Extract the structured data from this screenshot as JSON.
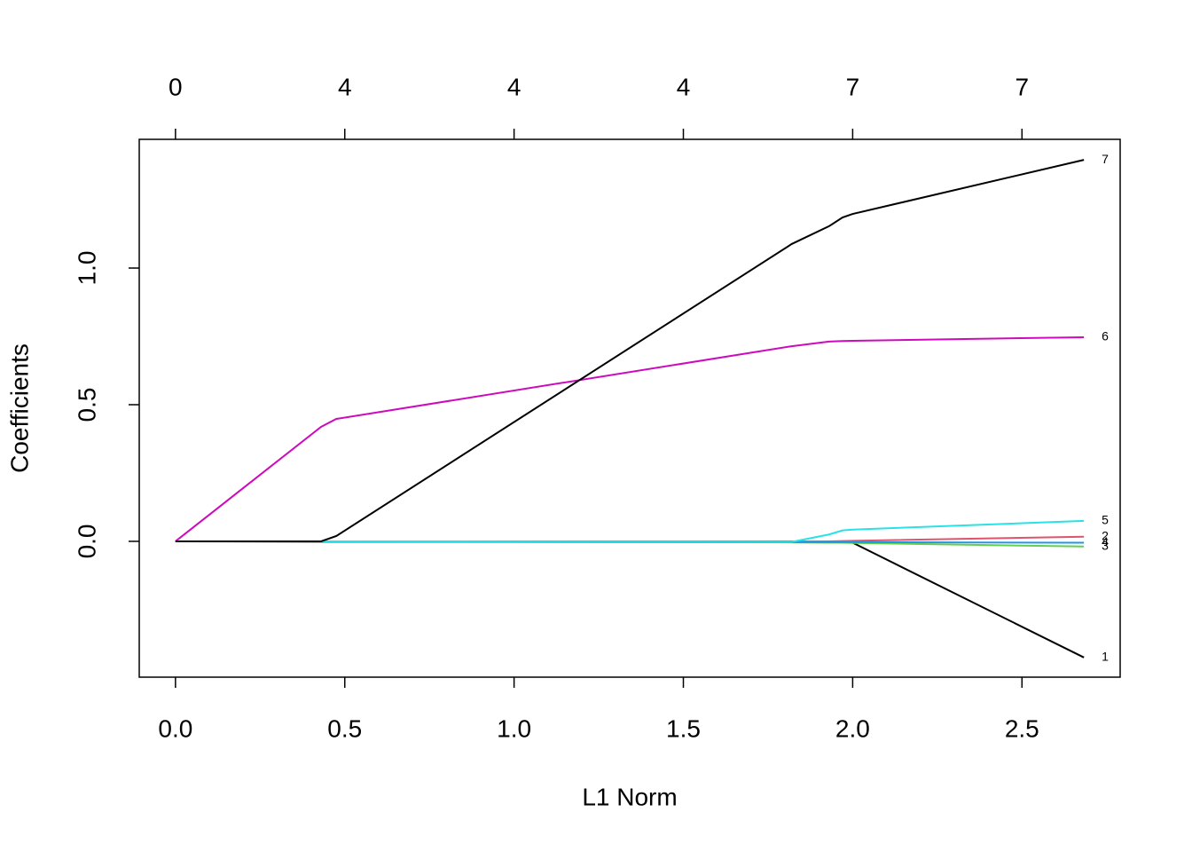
{
  "chart_data": {
    "type": "line",
    "xlabel": "L1 Norm",
    "ylabel": "Coefficients",
    "x": [
      0,
      0.43,
      0.475,
      1.82,
      1.93,
      1.97,
      2.0,
      2.683
    ],
    "series": [
      {
        "name": "1",
        "color": "#000000",
        "values": [
          0,
          0,
          0,
          -0.001,
          -0.002,
          -0.002,
          -0.005,
          -0.425
        ]
      },
      {
        "name": "2",
        "color": "#DF536B",
        "values": [
          0,
          0,
          0,
          -0.001,
          0,
          0.001,
          0.002,
          0.017
        ]
      },
      {
        "name": "3",
        "color": "#61D04F",
        "values": [
          0,
          0,
          0,
          -0.004,
          -0.005,
          -0.005,
          -0.006,
          -0.019
        ]
      },
      {
        "name": "4",
        "color": "#2297E6",
        "values": [
          0,
          -0.002,
          -0.002,
          -0.003,
          -0.003,
          -0.003,
          -0.003,
          -0.005
        ]
      },
      {
        "name": "5",
        "color": "#28E2E5",
        "values": [
          0,
          0,
          0,
          -0.002,
          0.025,
          0.04,
          0.043,
          0.075
        ]
      },
      {
        "name": "6",
        "color": "#CD0BBC",
        "values": [
          0,
          0.419,
          0.448,
          0.714,
          0.731,
          0.733,
          0.734,
          0.747
        ]
      },
      {
        "name": "7",
        "color": "#000000",
        "values": [
          0,
          0,
          0.0195,
          1.088,
          1.153,
          1.185,
          1.198,
          1.396
        ]
      }
    ],
    "xlim": [
      -0.107,
      2.79
    ],
    "ylim": [
      -0.497,
      1.471
    ],
    "xticks": [
      {
        "value": 0,
        "label": "0.0"
      },
      0.5,
      {
        "value": 1,
        "label": "1.0"
      },
      1.5,
      {
        "value": 2,
        "label": "2.0"
      },
      2.5
    ],
    "yticks": [
      {
        "value": 0,
        "label": "0.0"
      },
      0.5,
      {
        "value": 1,
        "label": "1.0"
      }
    ],
    "top_ticks": [
      0,
      {
        "value": 0.5,
        "label": "4"
      },
      {
        "value": 1,
        "label": "4"
      },
      {
        "value": 1.5,
        "label": "4"
      },
      {
        "value": 2,
        "label": "7"
      },
      {
        "value": 2.5,
        "label": "7"
      }
    ]
  }
}
